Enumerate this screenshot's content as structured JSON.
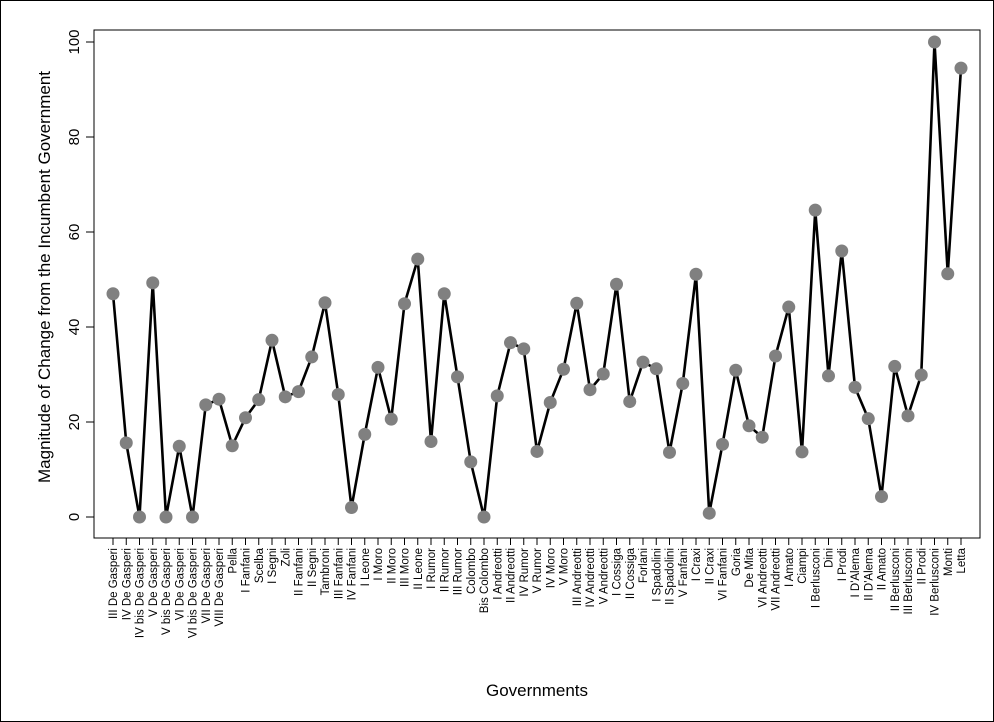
{
  "chart_data": {
    "type": "line",
    "title": "",
    "xlabel": "Governments",
    "ylabel": "Magnitude of Change from the Incumbent Government",
    "ylim": [
      0,
      100
    ],
    "yticks": [
      0,
      20,
      40,
      60,
      80,
      100
    ],
    "grid": false,
    "legend": "none",
    "line_color": "#000000",
    "marker_color": "#808080",
    "categories": [
      "III De Gasperi",
      "IV De Gasperi",
      "IV bis De Gasperi",
      "V De Gasperi",
      "V bis De Gasperi",
      "VI De Gasperi",
      "VI bis De Gasperi",
      "VII De Gasperi",
      "VIII De Gasperi",
      "Pella",
      "I Fanfani",
      "Scelba",
      "I Segni",
      "Zoli",
      "II Fanfani",
      "II Segni",
      "Tambroni",
      "III Fanfani",
      "IV Fanfani",
      "I Leone",
      "I Moro",
      "II Moro",
      "III Moro",
      "II Leone",
      "I Rumor",
      "II Rumor",
      "III Rumor",
      "Colombo",
      "Bis Colombo",
      "I Andreotti",
      "II Andreotti",
      "IV Rumor",
      "V Rumor",
      "IV Moro",
      "V Moro",
      "III Andreotti",
      "IV Andreotti",
      "V Andreotti",
      "I Cossiga",
      "II Cossiga",
      "Forlani",
      "I Spadolini",
      "II Spadolini",
      "V Fanfani",
      "I Craxi",
      "II Craxi",
      "VI Fanfani",
      "Goria",
      "De Mita",
      "VI Andreotti",
      "VII Andreotti",
      "I Amato",
      "Ciampi",
      "I Berlusconi",
      "Dini",
      "I Prodi",
      "I D'Alema",
      "II D'Alema",
      "II Amato",
      "II Berlusconi",
      "III Berlusconi",
      "II Prodi",
      "IV Berlusconi",
      "Monti",
      "Letta"
    ],
    "values": [
      47,
      15.6,
      0,
      49.3,
      0,
      14.9,
      0,
      23.6,
      24.8,
      15,
      20.9,
      24.7,
      37.2,
      25.3,
      26.4,
      33.7,
      45.1,
      25.8,
      2,
      17.4,
      31.5,
      20.6,
      44.9,
      54.3,
      15.9,
      47,
      29.5,
      11.6,
      0,
      25.5,
      36.7,
      35.4,
      13.8,
      24.1,
      31.1,
      45,
      26.8,
      30.1,
      49,
      24.3,
      32.6,
      31.2,
      13.6,
      28.1,
      51.1,
      0.8,
      15.3,
      30.9,
      19.2,
      16.8,
      33.9,
      44.2,
      13.7,
      64.6,
      29.7,
      56,
      27.3,
      20.7,
      4.3,
      31.7,
      21.3,
      29.9,
      100,
      51.2,
      94.5
    ]
  }
}
